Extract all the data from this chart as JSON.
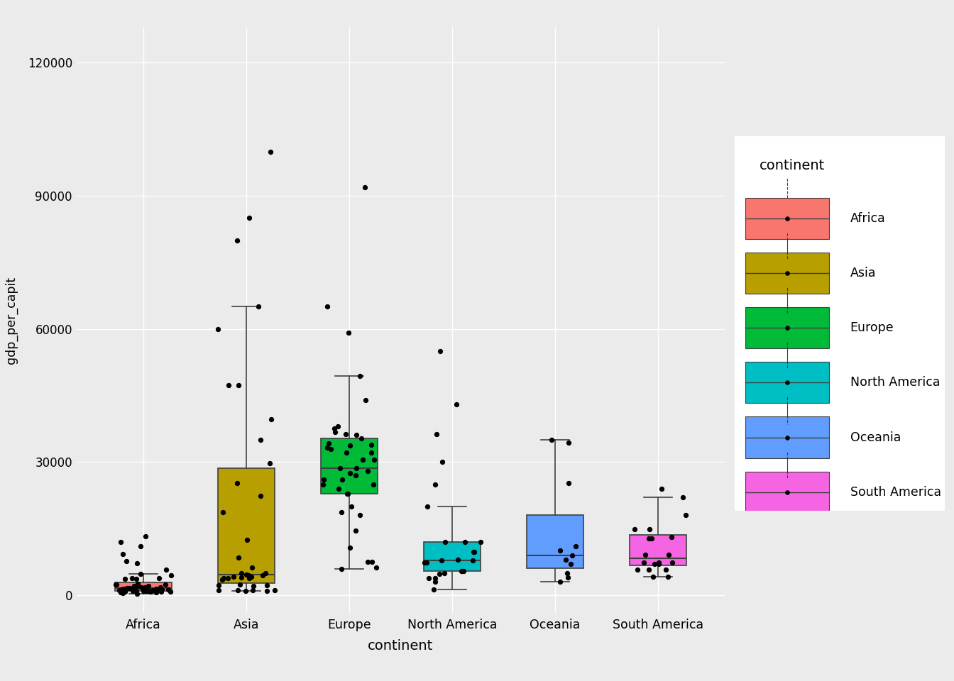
{
  "continents": [
    "Africa",
    "Asia",
    "Europe",
    "North America",
    "Oceania",
    "South America"
  ],
  "colors": {
    "Africa": "#F8766D",
    "Asia": "#B79F00",
    "Europe": "#00BA38",
    "North America": "#00BFC4",
    "Oceania": "#619CFF",
    "South America": "#F564E3"
  },
  "box_edge_color": "#404040",
  "median_color": "#404040",
  "point_color": "black",
  "background_color": "#EBEBEB",
  "panel_color": "#EBEBEB",
  "grid_color": "white",
  "xlabel": "continent",
  "ylabel": "gdp_per_capit",
  "ylim": [
    -4000,
    128000
  ],
  "yticks": [
    0,
    30000,
    60000,
    90000,
    120000
  ],
  "legend_title": "continent",
  "gdp_data": {
    "Africa": [
      974.5615,
      5681.3585,
      2042.0952,
      1217.033,
      430.0707,
      1712.4721,
      2423.4651,
      706.0165,
      1704.0637,
      13206.4845,
      4797.2313,
      986.1479,
      277.5519,
      9269.6578,
      1327.1079,
      1463.2493,
      2082.4816,
      924.31,
      7213.7913,
      2452.2104,
      1569.3314,
      7596.126,
      1545.8828,
      3630.8807,
      759.3555,
      12057.4993,
      10956.9911,
      1217.033,
      1029.1613,
      1271.2112,
      1107.4822,
      3820.1752,
      942.6542,
      1712.4721,
      853.1008,
      4513.4806,
      2441.5764,
      615.7308,
      1271.2112,
      3820.1752,
      1569.3314,
      2602.395,
      942.6542,
      853.1008,
      1107.4822,
      823.6856,
      2013.9774,
      1443.0117,
      1044.7701,
      1598.4351,
      3632.5578,
      862.5408
    ],
    "Asia": [
      974.5615,
      2441.5764,
      3820.1752,
      29796.0483,
      1091.3598,
      4959.1149,
      3820.1752,
      4184.5481,
      2280.7699,
      4519.4612,
      3540.6516,
      39724.9787,
      4616.8965,
      8458.2764,
      942.6542,
      12451.6558,
      1091.3598,
      22316.1929,
      47306.9898,
      1091.3598,
      3970.0954,
      18678.3144,
      4519.4612,
      25185.0091,
      2280.7699,
      6223.3675,
      100000.0,
      4184.5481,
      4959.1149,
      3820.1752,
      1091.3598,
      80000.0,
      85000.0,
      60000.0,
      65000.0,
      47306.9898,
      35000.0,
      2000.0
    ],
    "Europe": [
      5937.0295,
      36126.4927,
      33692.6051,
      7446.3988,
      10680.7928,
      14619.2227,
      22833.3085,
      35278.4187,
      33207.0844,
      30470.0167,
      32170.3744,
      27538.4119,
      18008.9444,
      36319.235,
      6223.3675,
      18678.3144,
      28569.7197,
      36797.9333,
      49357.1902,
      33859.7484,
      37506.4191,
      34167.7763,
      7446.3988,
      22833.3085,
      28569.7197,
      30470.0167,
      32170.3744,
      59141.1727,
      25000.0,
      65000.0,
      20000.0,
      26000.0,
      38000.0,
      26000.0,
      27000.0,
      28000.0,
      33000.0,
      44000.0,
      24000.0,
      92000.0,
      25000.0
    ],
    "North America": [
      36319.235,
      11977.575,
      7899.8548,
      9809.1856,
      5487.1042,
      7321.5609,
      3820.1752,
      7899.8548,
      5487.1042,
      9809.1856,
      11977.575,
      3820.1752,
      7321.5609,
      1201.6372,
      4797.2313,
      5487.1042,
      42951.6531,
      11977.575,
      55000.0,
      25000.0,
      30000.0,
      5000.0,
      3000.0,
      8000.0,
      20000.0
    ],
    "Oceania": [
      34435.3674,
      25185.0091,
      3000.0,
      4000.0,
      5000.0,
      7000.0,
      8000.0,
      9000.0,
      10000.0,
      11000.0,
      35000.0
    ],
    "South America": [
      12779.3796,
      9065.8008,
      14847.1271,
      7006.5804,
      4172.8385,
      7408.9056,
      12779.3796,
      5716.7667,
      9065.8008,
      14847.1271,
      7006.5804,
      4172.8385,
      7408.9056,
      5716.7667,
      13171.6388,
      7408.9056,
      5716.7667,
      22000.0,
      18000.0,
      24000.0
    ]
  }
}
